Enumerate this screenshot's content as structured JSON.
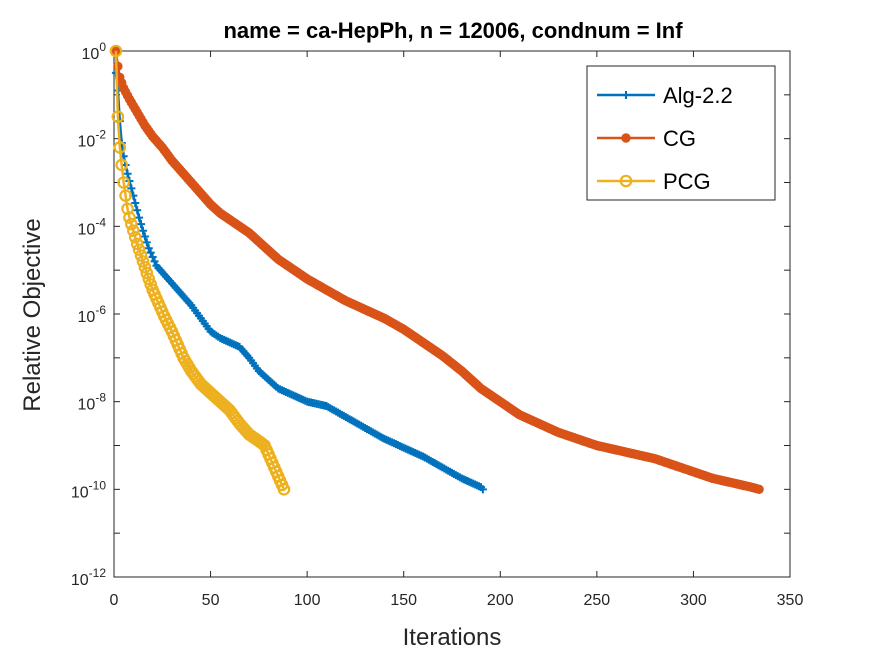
{
  "chart_data": {
    "type": "line",
    "title": "name = ca-HepPh, n = 12006, condnum = Inf",
    "xlabel": "Iterations",
    "ylabel": "Relative Objective",
    "xlim": [
      0,
      350
    ],
    "ylim_log10": [
      -12,
      0
    ],
    "y_scale": "log",
    "grid": false,
    "legend_position": "top-right",
    "x_ticks": [
      "0",
      "50",
      "100",
      "150",
      "200",
      "250",
      "300",
      "350"
    ],
    "y_ticks": [
      {
        "base": "10",
        "exp": "0"
      },
      {
        "base": "10",
        "exp": "-2"
      },
      {
        "base": "10",
        "exp": "-4"
      },
      {
        "base": "10",
        "exp": "-6"
      },
      {
        "base": "10",
        "exp": "-8"
      },
      {
        "base": "10",
        "exp": "-10"
      },
      {
        "base": "10",
        "exp": "-12"
      }
    ],
    "series": [
      {
        "name": "Alg-2.2",
        "color": "#0072BD",
        "marker": "plus",
        "points_log10": [
          [
            1,
            -0.5
          ],
          [
            2,
            -0.9
          ],
          [
            3,
            -1.6
          ],
          [
            4,
            -2.1
          ],
          [
            5,
            -2.4
          ],
          [
            7,
            -2.8
          ],
          [
            10,
            -3.3
          ],
          [
            13,
            -3.8
          ],
          [
            15,
            -4.1
          ],
          [
            18,
            -4.5
          ],
          [
            22,
            -4.9
          ],
          [
            26,
            -5.1
          ],
          [
            30,
            -5.3
          ],
          [
            35,
            -5.55
          ],
          [
            40,
            -5.8
          ],
          [
            45,
            -6.1
          ],
          [
            50,
            -6.4
          ],
          [
            55,
            -6.55
          ],
          [
            60,
            -6.65
          ],
          [
            65,
            -6.75
          ],
          [
            70,
            -7.0
          ],
          [
            75,
            -7.3
          ],
          [
            80,
            -7.5
          ],
          [
            85,
            -7.7
          ],
          [
            90,
            -7.8
          ],
          [
            95,
            -7.9
          ],
          [
            100,
            -8.0
          ],
          [
            110,
            -8.1
          ],
          [
            120,
            -8.35
          ],
          [
            130,
            -8.6
          ],
          [
            140,
            -8.85
          ],
          [
            150,
            -9.05
          ],
          [
            160,
            -9.25
          ],
          [
            170,
            -9.5
          ],
          [
            180,
            -9.75
          ],
          [
            190,
            -9.95
          ],
          [
            191,
            -10.0
          ]
        ]
      },
      {
        "name": "CG",
        "color": "#D95319",
        "marker": "dot",
        "points_log10": [
          [
            1,
            0.0
          ],
          [
            2,
            -0.35
          ],
          [
            3,
            -0.6
          ],
          [
            5,
            -0.85
          ],
          [
            8,
            -1.1
          ],
          [
            12,
            -1.4
          ],
          [
            16,
            -1.7
          ],
          [
            20,
            -1.95
          ],
          [
            25,
            -2.2
          ],
          [
            30,
            -2.5
          ],
          [
            35,
            -2.75
          ],
          [
            40,
            -3.0
          ],
          [
            45,
            -3.25
          ],
          [
            50,
            -3.5
          ],
          [
            55,
            -3.7
          ],
          [
            60,
            -3.85
          ],
          [
            65,
            -4.0
          ],
          [
            70,
            -4.15
          ],
          [
            75,
            -4.35
          ],
          [
            80,
            -4.55
          ],
          [
            85,
            -4.75
          ],
          [
            90,
            -4.9
          ],
          [
            95,
            -5.05
          ],
          [
            100,
            -5.2
          ],
          [
            110,
            -5.45
          ],
          [
            120,
            -5.7
          ],
          [
            130,
            -5.9
          ],
          [
            140,
            -6.1
          ],
          [
            150,
            -6.35
          ],
          [
            160,
            -6.65
          ],
          [
            170,
            -6.95
          ],
          [
            180,
            -7.3
          ],
          [
            190,
            -7.7
          ],
          [
            200,
            -8.0
          ],
          [
            210,
            -8.3
          ],
          [
            220,
            -8.5
          ],
          [
            230,
            -8.7
          ],
          [
            240,
            -8.85
          ],
          [
            250,
            -9.0
          ],
          [
            260,
            -9.1
          ],
          [
            270,
            -9.2
          ],
          [
            280,
            -9.3
          ],
          [
            290,
            -9.45
          ],
          [
            300,
            -9.6
          ],
          [
            310,
            -9.75
          ],
          [
            320,
            -9.85
          ],
          [
            330,
            -9.95
          ],
          [
            334,
            -10.0
          ]
        ]
      },
      {
        "name": "PCG",
        "color": "#EDB120",
        "marker": "circle",
        "points_log10": [
          [
            1,
            0.0
          ],
          [
            2,
            -1.5
          ],
          [
            3,
            -2.2
          ],
          [
            4,
            -2.6
          ],
          [
            5,
            -3.0
          ],
          [
            6,
            -3.3
          ],
          [
            7,
            -3.6
          ],
          [
            8,
            -3.8
          ],
          [
            10,
            -4.1
          ],
          [
            12,
            -4.4
          ],
          [
            15,
            -4.8
          ],
          [
            18,
            -5.2
          ],
          [
            20,
            -5.45
          ],
          [
            23,
            -5.75
          ],
          [
            26,
            -6.05
          ],
          [
            30,
            -6.4
          ],
          [
            33,
            -6.7
          ],
          [
            36,
            -7.0
          ],
          [
            40,
            -7.3
          ],
          [
            45,
            -7.6
          ],
          [
            50,
            -7.8
          ],
          [
            55,
            -8.0
          ],
          [
            60,
            -8.2
          ],
          [
            65,
            -8.5
          ],
          [
            70,
            -8.75
          ],
          [
            75,
            -8.9
          ],
          [
            78,
            -9.0
          ],
          [
            80,
            -9.2
          ],
          [
            83,
            -9.5
          ],
          [
            86,
            -9.8
          ],
          [
            88,
            -10.0
          ]
        ]
      }
    ]
  }
}
